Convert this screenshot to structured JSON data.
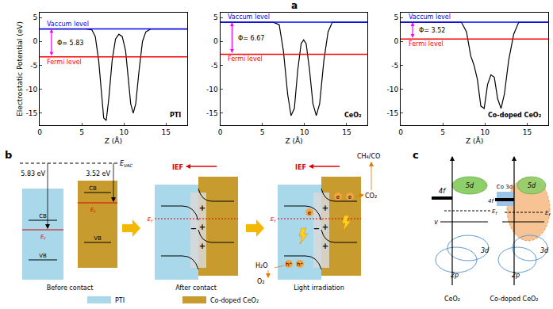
{
  "panel_labels": [
    "a",
    "b",
    "c"
  ],
  "chart_data": [
    {
      "type": "line",
      "title": "PTI",
      "xlabel": "Z (Å)",
      "ylabel": "Electrostatic Potential (eV)",
      "xlim": [
        0,
        17.5
      ],
      "xticks": [
        0,
        5,
        10,
        15
      ],
      "ylim": [
        -17.5,
        6
      ],
      "yticks": [
        -15,
        -10,
        -5,
        0,
        5
      ],
      "series": [
        {
          "color": "#000000",
          "x": [
            0,
            5.5,
            6.2,
            6.6,
            7.0,
            7.3,
            7.6,
            7.9,
            8.2,
            8.6,
            9.0,
            9.4,
            9.8,
            10.2,
            10.5,
            10.8,
            11.1,
            11.4,
            11.8,
            12.2,
            12.6,
            13.2,
            17.5
          ],
          "values": [
            2.6,
            2.6,
            2.4,
            1,
            -4,
            -10,
            -16,
            -16.5,
            -12,
            -4,
            0.5,
            1.5,
            1,
            -2,
            -8,
            -13,
            -15,
            -13,
            -6,
            0,
            2,
            2.6,
            2.6
          ]
        },
        {
          "name": "Vaccum level",
          "color": "#0000ff",
          "x": [
            0,
            17.5
          ],
          "values": [
            2.6,
            2.6
          ]
        },
        {
          "name": "Fermi level",
          "color": "#ff0000",
          "x": [
            0,
            17.5
          ],
          "values": [
            -3.23,
            -3.23
          ]
        }
      ],
      "annotations": [
        {
          "text": "Φ= 5.83",
          "color": "#ff00ff"
        }
      ]
    },
    {
      "type": "line",
      "title": "CeO₂",
      "xlabel": "Z (Å)",
      "xlim": [
        0,
        17.5
      ],
      "xticks": [
        0,
        5,
        10,
        15
      ],
      "ylim": [
        -17.5,
        6
      ],
      "yticks": [
        -15,
        -10,
        -5,
        0,
        5
      ],
      "series": [
        {
          "color": "#000000",
          "x": [
            0,
            6.3,
            7.0,
            7.5,
            8.0,
            8.4,
            8.8,
            9.2,
            9.6,
            9.9,
            10.2,
            10.6,
            11.0,
            11.4,
            11.8,
            12.3,
            12.8,
            13.3,
            17.5
          ],
          "values": [
            4,
            4,
            3.5,
            -2,
            -11,
            -15.5,
            -14,
            -6,
            -0.5,
            0.3,
            -0.5,
            -6,
            -13,
            -15.5,
            -13,
            -4,
            2,
            4,
            4
          ]
        },
        {
          "name": "Vaccum level",
          "color": "#0000ff",
          "x": [
            0,
            17.5
          ],
          "values": [
            4,
            4
          ]
        },
        {
          "name": "Fermi level",
          "color": "#ff0000",
          "x": [
            0,
            17.5
          ],
          "values": [
            -2.67,
            -2.67
          ]
        }
      ],
      "annotations": [
        {
          "text": "Φ= 6.67",
          "color": "#ff00ff"
        }
      ]
    },
    {
      "type": "line",
      "title": "Co-doped CeO₂",
      "xlabel": "Z (Å)",
      "xlim": [
        0,
        17.5
      ],
      "xticks": [
        0,
        5,
        10,
        15
      ],
      "ylim": [
        -17.5,
        6
      ],
      "yticks": [
        -15,
        -10,
        -5,
        0,
        5
      ],
      "series": [
        {
          "color": "#000000",
          "x": [
            0,
            7.2,
            7.8,
            8.3,
            8.7,
            9.1,
            9.5,
            9.9,
            10.3,
            10.7,
            11.1,
            11.5,
            11.9,
            12.3,
            12.8,
            13.4,
            14,
            17.5
          ],
          "values": [
            4,
            4,
            2,
            -3,
            -5,
            -8,
            -13.5,
            -14,
            -9,
            -7,
            -7.5,
            -12,
            -14,
            -11,
            -4,
            1.5,
            4,
            4
          ]
        },
        {
          "name": "Vaccum level",
          "color": "#0000ff",
          "x": [
            0,
            17.5
          ],
          "values": [
            4,
            4
          ]
        },
        {
          "name": "Fermi level",
          "color": "#ff0000",
          "x": [
            0,
            17.5
          ],
          "values": [
            0.48,
            0.48
          ]
        }
      ],
      "annotations": [
        {
          "text": "Φ= 3.52",
          "color": "#ff00ff"
        }
      ]
    }
  ],
  "panel_b": {
    "evac": {
      "main": "E",
      "sub": "VAC"
    },
    "phi_left": "5.83 eV",
    "phi_right": "3.52 eV",
    "cb": "CB",
    "vb": "VB",
    "ef": {
      "main": "E",
      "sub": "f"
    },
    "ief": "IEF",
    "plus": "+",
    "minus": "−",
    "electron": "e",
    "hole": "h⁺",
    "product": "CH₄/CO",
    "reactant": "CO₂",
    "water": "H₂O",
    "oxygen": "O₂",
    "stages": [
      "Before contact",
      "After contact",
      "Light irradiation"
    ],
    "legend": [
      {
        "name": "PTI",
        "color": "#a8d8ea"
      },
      {
        "name": "Co-doped CeO₂",
        "color": "#c89b2e"
      }
    ]
  },
  "panel_c": {
    "f4": "4f",
    "d5": "5d",
    "ef": {
      "main": "E",
      "sub": "f"
    },
    "v": "v",
    "d3": "3d",
    "p2": "2p",
    "co3d": "Co 3d",
    "captions": [
      "CeO₂",
      "Co-doped CeO₂"
    ]
  }
}
